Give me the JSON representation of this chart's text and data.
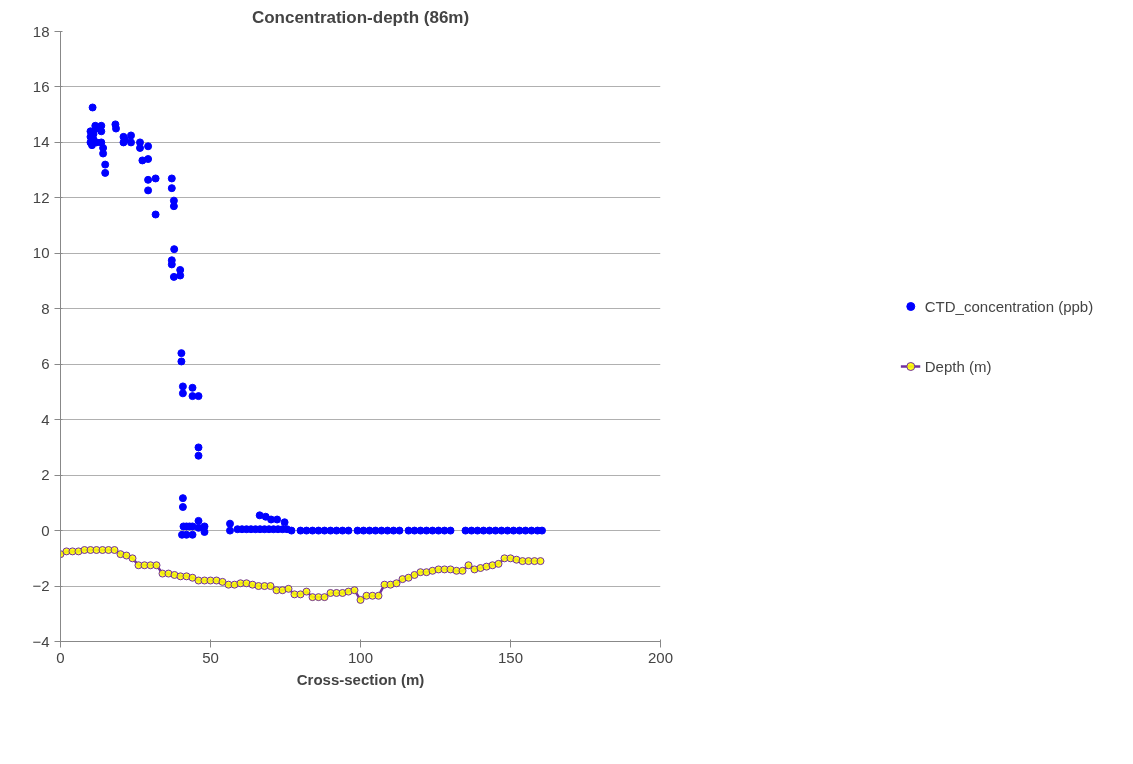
{
  "chart_data": {
    "type": "scatter",
    "title": "Concentration-depth (86m)",
    "xlabel": "Cross-section (m)",
    "xlim": [
      0,
      200
    ],
    "xticks": [
      0,
      50,
      100,
      150,
      200
    ],
    "ylim": [
      -4,
      18
    ],
    "yticks": [
      -4,
      -2,
      0,
      2,
      4,
      6,
      8,
      10,
      12,
      14,
      16,
      18
    ],
    "grid": "y",
    "legend": "right",
    "marker": "circle",
    "series": [
      {
        "name": "CTD_concentration (ppb)",
        "color": "#0000ff",
        "x": [
          10.7,
          10,
          10,
          10,
          10.5,
          11,
          11,
          11.6,
          12,
          12,
          13.6,
          13.6,
          13.6,
          14.2,
          14.2,
          14.9,
          14.9,
          18.3,
          18.5,
          21,
          21,
          21.5,
          23.5,
          23.5,
          26.5,
          26.5,
          27.3,
          29.2,
          29.2,
          29.2,
          29.2,
          31.7,
          31.7,
          37.1,
          37.1,
          37.8,
          37.8,
          37.9,
          37.1,
          37.1,
          37.8,
          39.9,
          39.9,
          40.3,
          40.3,
          40.8,
          40.8,
          44,
          44,
          46,
          46,
          46,
          40.8,
          40.8,
          41,
          42,
          43,
          44,
          40.5,
          42,
          44,
          46,
          46,
          48,
          48,
          56.5,
          56.5,
          59,
          60.5,
          62,
          63.5,
          65,
          66.4,
          66.5,
          68,
          68.4,
          69.5,
          70.2,
          71,
          72.2,
          72.5,
          74,
          74.7,
          75.5,
          77,
          80,
          82,
          84,
          86,
          88,
          90,
          92,
          94,
          96,
          99,
          101,
          103,
          105,
          107,
          109,
          111,
          113,
          116,
          118,
          120,
          122,
          124,
          126,
          128,
          130,
          135,
          137,
          139,
          141,
          143,
          145,
          147,
          149,
          151,
          153,
          155,
          157,
          159,
          160.5
        ],
        "values": [
          15.26,
          14.4,
          14.2,
          14.0,
          13.9,
          14.1,
          14.3,
          14.6,
          14.5,
          14.0,
          14.6,
          14.4,
          14.0,
          13.8,
          13.6,
          13.2,
          12.9,
          14.65,
          14.5,
          14.2,
          14.0,
          14.1,
          14.25,
          14.0,
          14.0,
          13.8,
          13.35,
          13.86,
          13.4,
          12.65,
          12.27,
          12.7,
          11.4,
          12.7,
          12.35,
          11.9,
          11.7,
          10.15,
          9.75,
          9.6,
          9.15,
          9.4,
          9.2,
          6.4,
          6.1,
          5.2,
          4.95,
          5.15,
          4.85,
          4.85,
          3.0,
          2.7,
          1.17,
          0.85,
          0.15,
          0.15,
          0.15,
          0.15,
          -0.15,
          -0.15,
          -0.15,
          0.35,
          0.1,
          0.15,
          -0.05,
          0.25,
          0.0,
          0.05,
          0.05,
          0.05,
          0.05,
          0.05,
          0.55,
          0.05,
          0.05,
          0.5,
          0.05,
          0.4,
          0.05,
          0.4,
          0.05,
          0.05,
          0.3,
          0.05,
          0.0,
          0.0,
          0.0,
          0.0,
          0.0,
          0.0,
          0.0,
          0.0,
          0.0,
          0.0,
          0.0,
          0.0,
          0.0,
          0.0,
          0.0,
          0.0,
          0.0,
          0.0,
          0.0,
          0.0,
          0.0,
          0.0,
          0.0,
          0.0,
          0.0,
          0.0,
          0.0,
          0.0,
          0.0,
          0.0,
          0.0,
          0.0,
          0.0,
          0.0,
          0.0,
          0.0,
          0.0,
          0.0,
          0.0,
          0.0
        ]
      },
      {
        "name": "Depth (m)",
        "type": "line",
        "color": "#7030a0",
        "colors": [
          "#ffff00",
          "#ffff00",
          "#ffff00",
          "#ffff00",
          "#ffff00",
          "#ffff00",
          "#ffff00",
          "#ffff00",
          "#ffff00",
          "#ffff00",
          "#ffff00",
          "#ffff00",
          "#ffff00",
          "#ffff00",
          "#ffff00",
          "#ffff00",
          "#ffff00",
          "#ffff00",
          "#ffff00",
          "#ffff00",
          "#ffff00",
          "#ffff00",
          "#ffff00",
          "#ffff00",
          "#ffff00",
          "#ffff00",
          "#ffff00",
          "#ffff00",
          "#ffff00",
          "#ffff00",
          "#ffff00",
          "#ffff00",
          "#ffff00",
          "#ffff00",
          "#ffff00",
          "#ffff00",
          "#ffff00",
          "#ffff00",
          "#ffff00",
          "#ffff00",
          "#ffff00",
          "#ffff00",
          "#ffff00",
          "#ffff00",
          "#ffff00",
          "#ffff00",
          "#ffff00",
          "#ffff00",
          "#ffff00",
          "#ffff00",
          "#ffff00",
          "#ffff00",
          "#ffff00",
          "#ffff00",
          "#ffff00",
          "#ffff00",
          "#ffff00",
          "#ffff00",
          "#ffff00",
          "#ffff00",
          "#ffff00",
          "#ffff00",
          "#ffff00",
          "#ffff00",
          "#ffff00",
          "#ffff00",
          "#ffff00",
          "#ffff00",
          "#ffff00",
          "#ffff00",
          "#ffff00",
          "#ffff00",
          "#ffff00",
          "#ffff00",
          "#ffff00",
          "#ffff00",
          "#ffff00",
          "#ffff00",
          "#ffff00",
          "#ffff00",
          "#ffff00"
        ],
        "x": [
          0,
          2,
          4,
          6,
          8,
          10,
          12,
          14,
          16,
          18,
          20,
          22,
          24,
          26,
          28,
          30,
          32,
          34,
          36,
          38,
          40,
          42,
          44,
          46,
          48,
          50,
          52,
          54,
          56,
          58,
          60,
          62,
          64,
          66,
          68,
          70,
          72,
          74,
          76,
          78,
          80,
          82,
          84,
          86,
          88,
          90,
          92,
          94,
          96,
          98,
          100,
          102,
          104,
          106,
          108,
          110,
          112,
          114,
          116,
          118,
          120,
          122,
          124,
          126,
          128,
          130,
          132,
          134,
          136,
          138,
          140,
          142,
          144,
          146,
          148,
          150,
          152,
          154,
          156,
          158,
          160
        ],
        "values": [
          -0.85,
          -0.75,
          -0.75,
          -0.75,
          -0.7,
          -0.7,
          -0.7,
          -0.7,
          -0.7,
          -0.7,
          -0.85,
          -0.9,
          -1.0,
          -1.25,
          -1.25,
          -1.25,
          -1.25,
          -1.55,
          -1.55,
          -1.6,
          -1.65,
          -1.65,
          -1.7,
          -1.8,
          -1.8,
          -1.8,
          -1.8,
          -1.85,
          -1.95,
          -1.95,
          -1.9,
          -1.9,
          -1.95,
          -2.0,
          -2.0,
          -2.0,
          -2.15,
          -2.15,
          -2.1,
          -2.3,
          -2.3,
          -2.2,
          -2.4,
          -2.4,
          -2.4,
          -2.25,
          -2.25,
          -2.25,
          -2.2,
          -2.15,
          -2.5,
          -2.35,
          -2.35,
          -2.35,
          -1.95,
          -1.95,
          -1.9,
          -1.75,
          -1.7,
          -1.6,
          -1.5,
          -1.5,
          -1.45,
          -1.4,
          -1.4,
          -1.4,
          -1.45,
          -1.45,
          -1.25,
          -1.4,
          -1.35,
          -1.3,
          -1.25,
          -1.2,
          -1.0,
          -1.0,
          -1.05,
          -1.1,
          -1.1,
          -1.1,
          -1.1
        ]
      }
    ]
  }
}
